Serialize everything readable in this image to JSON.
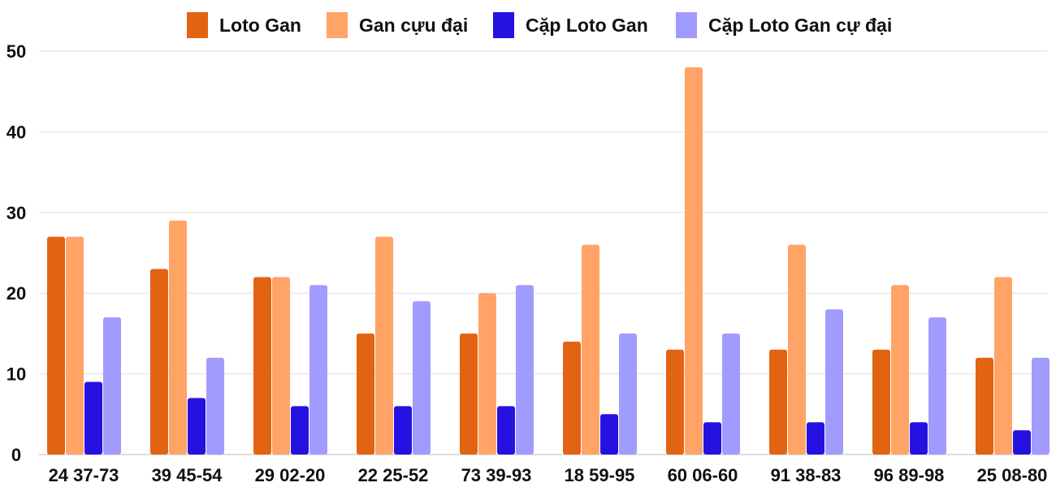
{
  "chart_data": {
    "type": "bar",
    "categories": [
      "24 37-73",
      "39 45-54",
      "29 02-20",
      "22 25-52",
      "73 39-93",
      "18 59-95",
      "60 06-60",
      "91 38-83",
      "96 89-98",
      "25 08-80"
    ],
    "series": [
      {
        "name": "Loto Gan",
        "color": "#E26312",
        "values": [
          27,
          23,
          22,
          15,
          15,
          14,
          13,
          13,
          13,
          12
        ]
      },
      {
        "name": "Gan cựu đại",
        "color": "#FFA366",
        "values": [
          27,
          29,
          22,
          27,
          20,
          26,
          48,
          26,
          21,
          22
        ]
      },
      {
        "name": "Cặp Loto Gan",
        "color": "#2612E0",
        "values": [
          9,
          7,
          6,
          6,
          6,
          5,
          4,
          4,
          4,
          3
        ]
      },
      {
        "name": "Cặp Loto Gan cự đại",
        "color": "#A29BFE",
        "values": [
          17,
          12,
          21,
          19,
          21,
          15,
          15,
          18,
          17,
          12
        ]
      }
    ],
    "ylim": [
      0,
      50
    ],
    "yticks": [
      0,
      10,
      20,
      30,
      40,
      50
    ],
    "grid": true,
    "legend": "top"
  }
}
